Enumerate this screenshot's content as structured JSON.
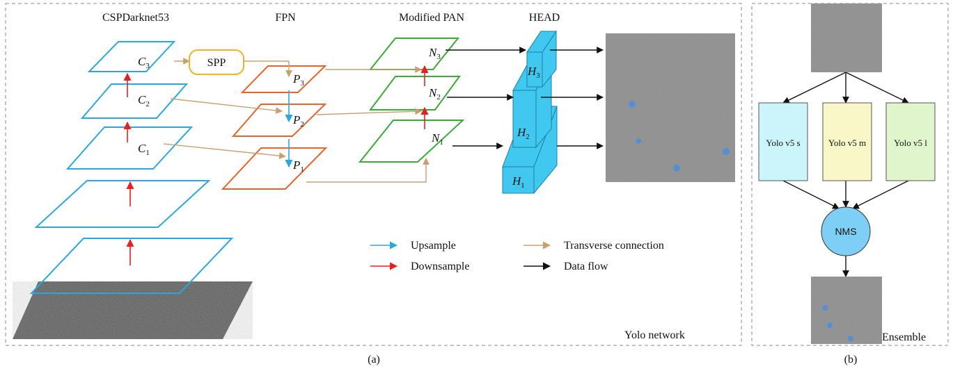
{
  "columns": [
    "CSPDarknet53",
    "FPN",
    "Modified PAN",
    "HEAD"
  ],
  "spp": "SPP",
  "layer_labels": [
    {
      "base": "C",
      "sub": "3"
    },
    {
      "base": "C",
      "sub": "2"
    },
    {
      "base": "C",
      "sub": "1"
    },
    {
      "base": "P",
      "sub": "3"
    },
    {
      "base": "P",
      "sub": "2"
    },
    {
      "base": "P",
      "sub": "1"
    },
    {
      "base": "N",
      "sub": "3"
    },
    {
      "base": "N",
      "sub": "2"
    },
    {
      "base": "N",
      "sub": "1"
    },
    {
      "base": "H",
      "sub": "3"
    },
    {
      "base": "H",
      "sub": "2"
    },
    {
      "base": "H",
      "sub": "1"
    }
  ],
  "legend": [
    "Upsample",
    "Downsample",
    "Transverse connection",
    "Data flow"
  ],
  "network_label": "Yolo network",
  "caption_a": "(a)",
  "models": [
    "Yolo v5 s",
    "Yolo v5 m",
    "Yolo v5 l"
  ],
  "nms": "NMS",
  "ensemble_label": "Ensemble",
  "caption_b": "(b)"
}
